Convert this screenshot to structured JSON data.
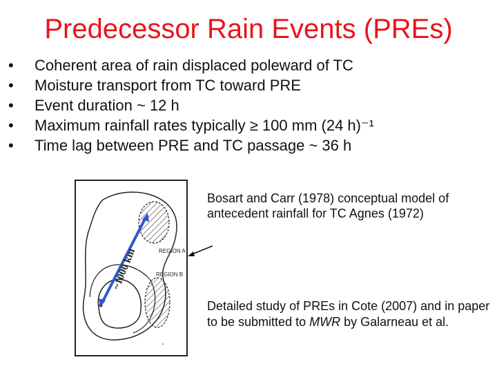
{
  "slide": {
    "title": "Predecessor Rain Events (PREs)",
    "bullet_symbol": "•",
    "bullets": [
      "Coherent area of rain displaced poleward of TC",
      "Moisture transport from TC toward PRE",
      "Event duration ~ 12 h",
      "Maximum rainfall rates typically ≥ 100 mm (24 h)⁻¹",
      "Time lag between PRE and TC passage ~ 36 h"
    ],
    "figure": {
      "distance_label": "~1000 km",
      "region_a_label": "REGION A",
      "region_b_label": "REGION B",
      "arrow_color": "#2f58c8"
    },
    "caption_top": "Bosart and Carr (1978) conceptual model of antecedent rainfall for TC Agnes (1972)",
    "caption_bottom": {
      "before": "Detailed study of PREs in Cote (2007) and in paper to be submitted to ",
      "journal": "MWR",
      "after": " by Galarneau et al."
    },
    "colors": {
      "title": "#e8141b",
      "text": "#111111"
    }
  }
}
